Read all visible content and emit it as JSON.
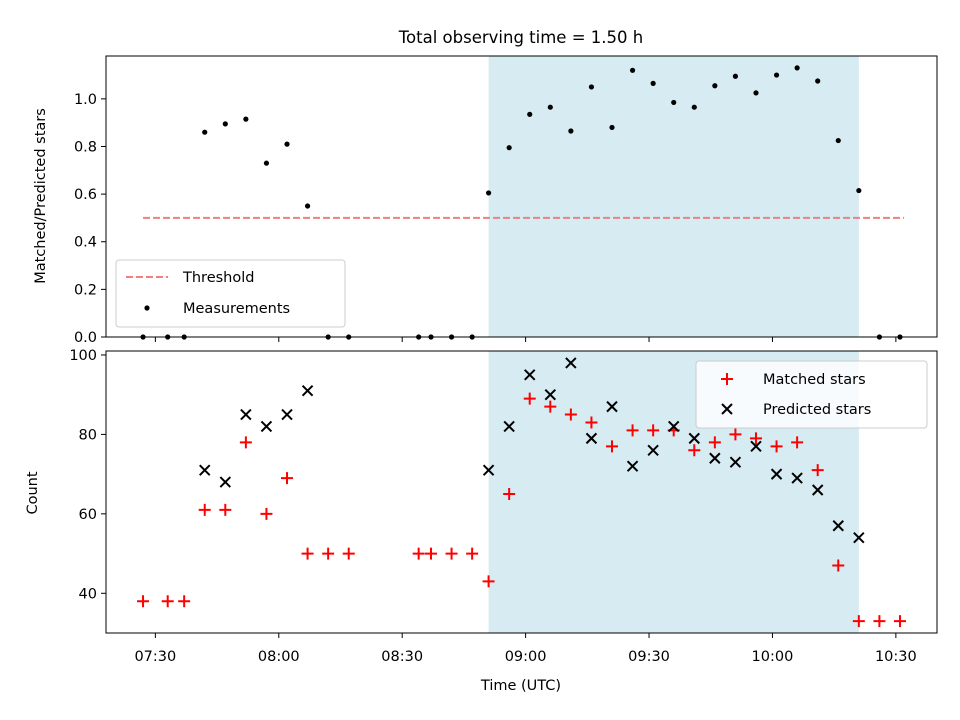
{
  "chart_data": [
    {
      "type": "scatter",
      "title": "Total observing time = 1.50 h",
      "ylabel": "Matched/Predicted stars",
      "xlabel": "",
      "xlim": [
        "07:18",
        "10:40"
      ],
      "ylim": [
        0,
        1.18
      ],
      "yticks": [
        0.0,
        0.2,
        0.4,
        0.6,
        0.8,
        1.0
      ],
      "ytick_labels": [
        "0.0",
        "0.2",
        "0.4",
        "0.6",
        "0.8",
        "1.0"
      ],
      "shaded_span": [
        "08:51",
        "10:21"
      ],
      "legend_position": "lower-left",
      "grid": false,
      "series": [
        {
          "name": "Threshold",
          "style": "dashed-line",
          "color": "#f08080",
          "x": [
            "07:27",
            "10:32"
          ],
          "y": [
            0.5,
            0.5
          ]
        },
        {
          "name": "Measurements",
          "style": "dot",
          "color": "#000000",
          "x": [
            "07:27",
            "07:33",
            "07:37",
            "07:42",
            "07:47",
            "07:52",
            "07:57",
            "08:02",
            "08:07",
            "08:12",
            "08:17",
            "08:34",
            "08:37",
            "08:42",
            "08:47",
            "08:51",
            "08:56",
            "09:01",
            "09:06",
            "09:11",
            "09:16",
            "09:21",
            "09:26",
            "09:31",
            "09:36",
            "09:41",
            "09:46",
            "09:51",
            "09:56",
            "10:01",
            "10:06",
            "10:11",
            "10:16",
            "10:21",
            "10:26",
            "10:31"
          ],
          "y": [
            0.0,
            0.0,
            0.0,
            0.86,
            0.895,
            0.915,
            0.73,
            0.81,
            0.55,
            0.0,
            0.0,
            0.0,
            0.0,
            0.0,
            0.0,
            0.605,
            0.795,
            0.935,
            0.965,
            0.865,
            1.05,
            0.88,
            1.12,
            1.065,
            0.985,
            0.965,
            1.055,
            1.095,
            1.025,
            1.1,
            1.13,
            1.075,
            0.825,
            0.615,
            0.0,
            0.0
          ]
        }
      ]
    },
    {
      "type": "scatter",
      "title": "",
      "ylabel": "Count",
      "xlabel": "Time (UTC)",
      "xlim": [
        "07:18",
        "10:40"
      ],
      "ylim": [
        30,
        101
      ],
      "yticks": [
        40,
        60,
        80,
        100
      ],
      "ytick_labels": [
        "40",
        "60",
        "80",
        "100"
      ],
      "xticks": [
        "07:30",
        "08:00",
        "08:30",
        "09:00",
        "09:30",
        "10:00",
        "10:30"
      ],
      "shaded_span": [
        "08:51",
        "10:21"
      ],
      "legend_position": "upper-right",
      "grid": false,
      "series": [
        {
          "name": "Matched stars",
          "marker": "plus",
          "color": "#ff0000",
          "x": [
            "07:27",
            "07:33",
            "07:37",
            "07:42",
            "07:47",
            "07:52",
            "07:57",
            "08:02",
            "08:07",
            "08:12",
            "08:17",
            "08:34",
            "08:37",
            "08:42",
            "08:47",
            "08:51",
            "08:56",
            "09:01",
            "09:06",
            "09:11",
            "09:16",
            "09:21",
            "09:26",
            "09:31",
            "09:36",
            "09:41",
            "09:46",
            "09:51",
            "09:56",
            "10:01",
            "10:06",
            "10:11",
            "10:16",
            "10:21",
            "10:26",
            "10:31"
          ],
          "y": [
            38,
            38,
            38,
            61,
            61,
            78,
            60,
            69,
            50,
            50,
            50,
            50,
            50,
            50,
            50,
            43,
            65,
            89,
            87,
            85,
            83,
            77,
            81,
            81,
            81,
            76,
            78,
            80,
            79,
            77,
            78,
            71,
            47,
            33,
            33,
            33
          ]
        },
        {
          "name": "Predicted stars",
          "marker": "x",
          "color": "#000000",
          "x": [
            "07:42",
            "07:47",
            "07:52",
            "07:57",
            "08:02",
            "08:07",
            "08:51",
            "08:56",
            "09:01",
            "09:06",
            "09:11",
            "09:16",
            "09:21",
            "09:26",
            "09:31",
            "09:36",
            "09:41",
            "09:46",
            "09:51",
            "09:56",
            "10:01",
            "10:06",
            "10:11",
            "10:16",
            "10:21"
          ],
          "y": [
            71,
            68,
            85,
            82,
            85,
            91,
            71,
            82,
            95,
            90,
            98,
            79,
            87,
            72,
            76,
            82,
            79,
            74,
            73,
            77,
            70,
            69,
            66,
            57,
            54
          ]
        }
      ]
    }
  ]
}
